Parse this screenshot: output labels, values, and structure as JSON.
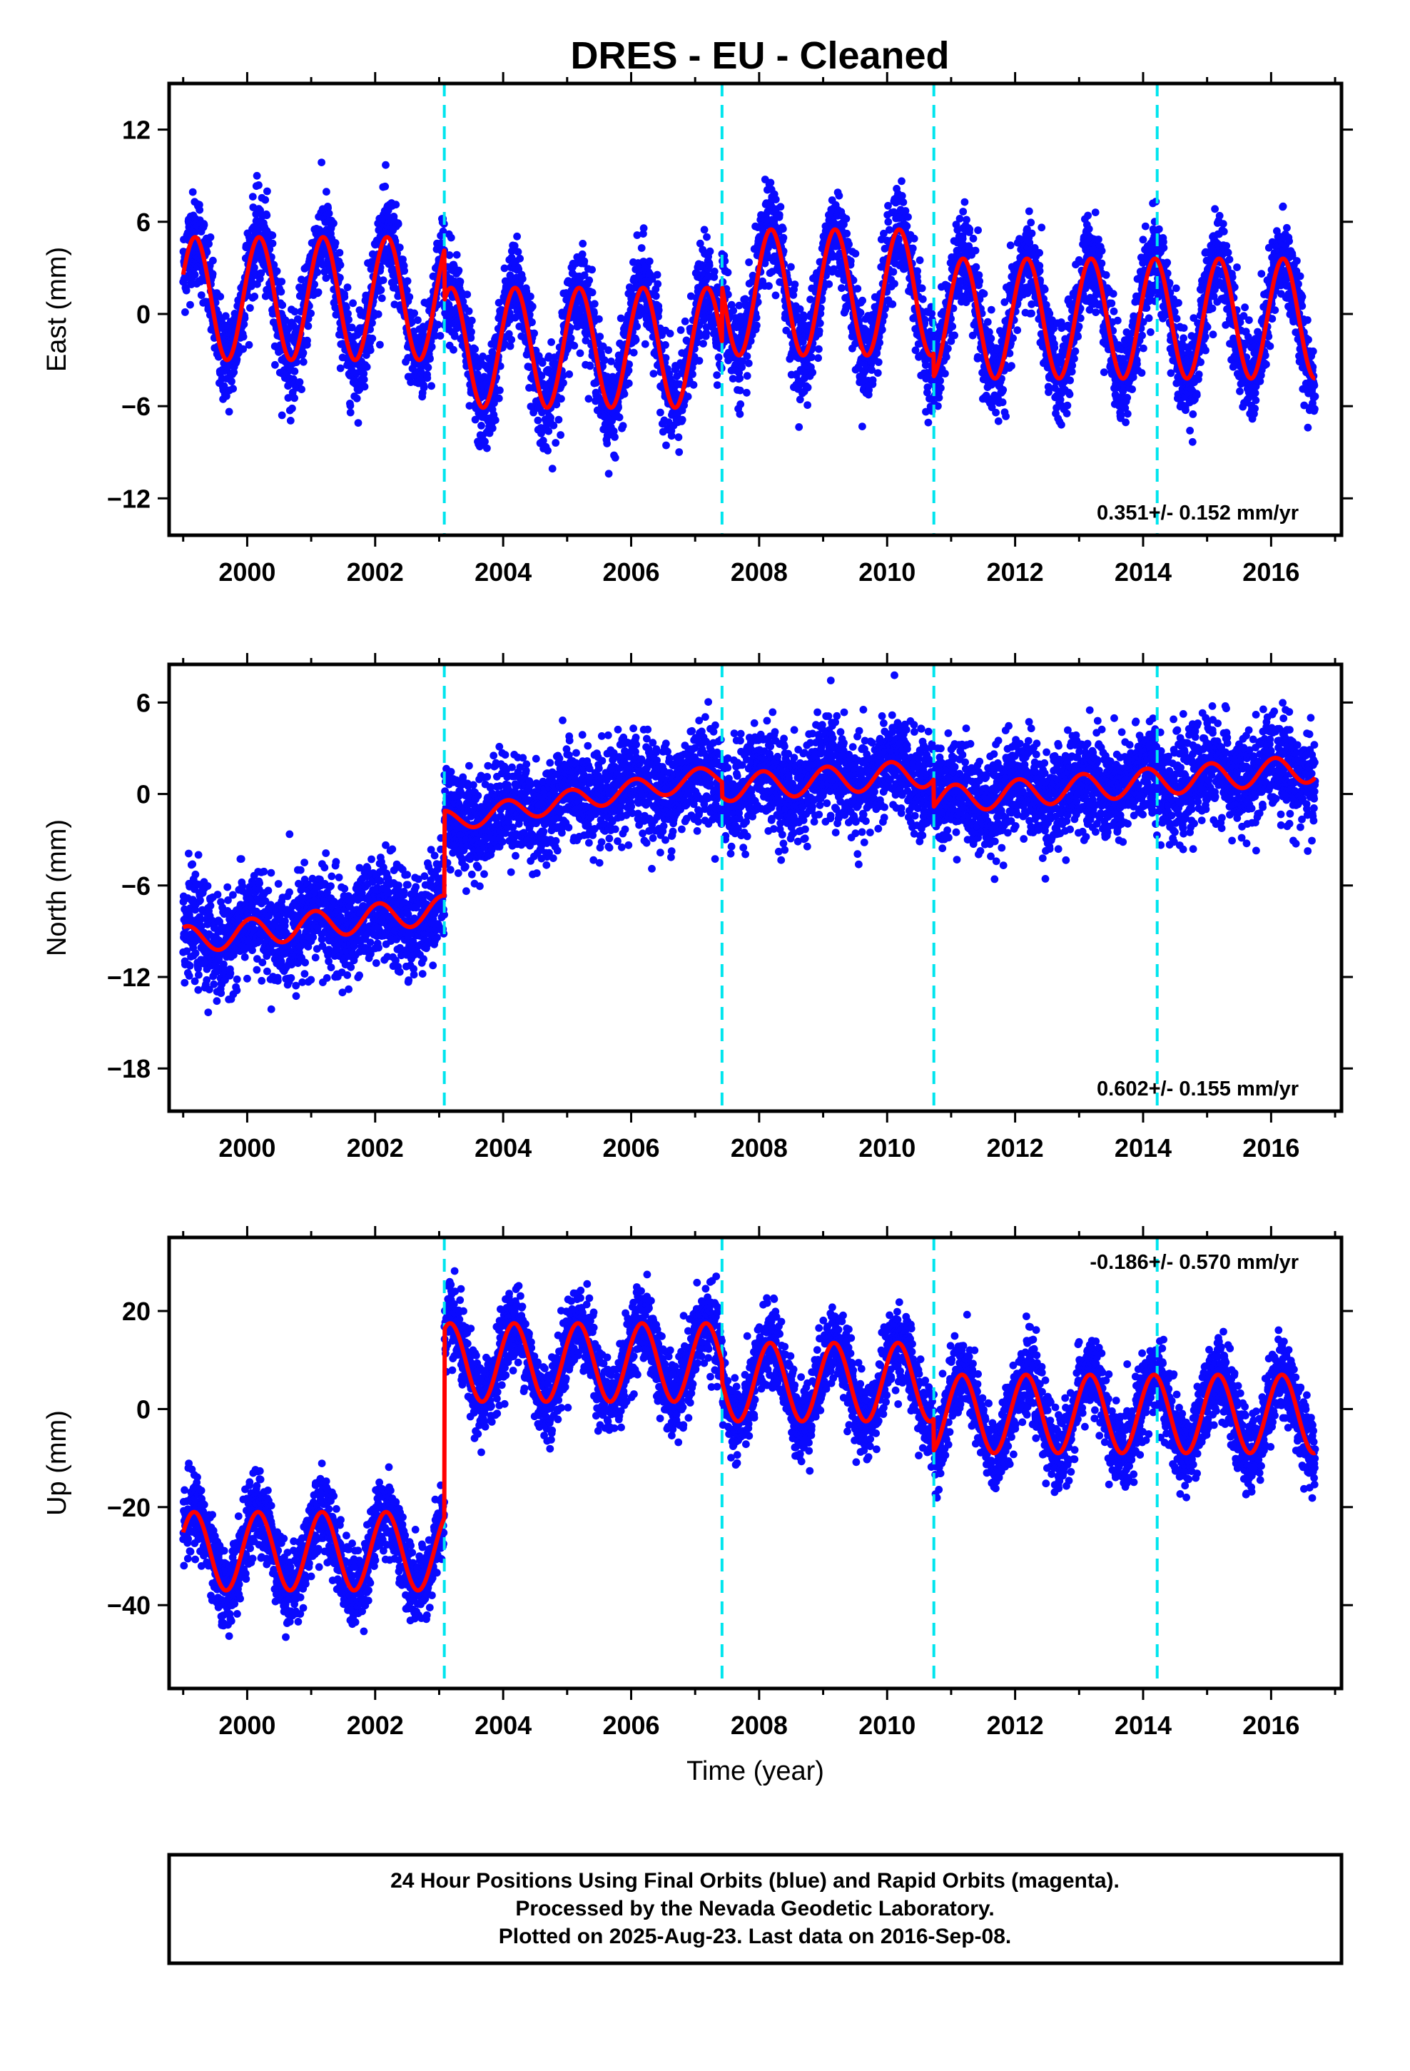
{
  "title": "DRES  - EU - Cleaned",
  "colors": {
    "data_points": "#0a0aff",
    "model_line": "#ff0000",
    "breaks": "#00e5ee",
    "frame": "#000000"
  },
  "chart_data": [
    {
      "type": "scatter",
      "name": "east",
      "xlabel": "",
      "ylabel": "East (mm)",
      "xlim": [
        1998.78,
        2017.1
      ],
      "ylim": [
        -14.4,
        15.0
      ],
      "yticks": [
        -12,
        -6,
        0,
        6,
        12
      ],
      "ytick_labels": [
        "−12",
        "−6",
        "0",
        "6",
        "12"
      ],
      "xticks": [
        2000,
        2002,
        2004,
        2006,
        2008,
        2010,
        2012,
        2014,
        2016
      ],
      "xtick_labels": [
        "2000",
        "2002",
        "2004",
        "2006",
        "2008",
        "2010",
        "2012",
        "2014",
        "2016"
      ],
      "rate": "0.351+/- 0.152 mm/yr",
      "rate_position": "bottom-right",
      "breaks": [
        2003.08,
        2007.42,
        2010.73,
        2014.22
      ],
      "segments": [
        {
          "start": 1999.0,
          "end": 2003.08,
          "offset": 1.0,
          "amplitude": 4.0,
          "slope": 0.0
        },
        {
          "start": 2003.08,
          "end": 2007.42,
          "offset": -2.2,
          "amplitude": 3.9,
          "slope": 0.0
        },
        {
          "start": 2007.42,
          "end": 2010.73,
          "offset": 1.4,
          "amplitude": 4.1,
          "slope": 0.0
        },
        {
          "start": 2010.73,
          "end": 2016.69,
          "offset": -0.3,
          "amplitude": 3.9,
          "slope": 0.0
        }
      ],
      "phase": 0.4,
      "noise": 1.5,
      "data_span": [
        1999.0,
        2016.69
      ],
      "points_per_year": 340
    },
    {
      "type": "scatter",
      "name": "north",
      "xlabel": "",
      "ylabel": "North (mm)",
      "xlim": [
        1998.78,
        2017.1
      ],
      "ylim": [
        -20.8,
        8.5
      ],
      "yticks": [
        -18,
        -12,
        -6,
        0,
        6
      ],
      "ytick_labels": [
        "−18",
        "−12",
        "−6",
        "0",
        "6"
      ],
      "xticks": [
        2000,
        2002,
        2004,
        2006,
        2008,
        2010,
        2012,
        2014,
        2016
      ],
      "xtick_labels": [
        "2000",
        "2002",
        "2004",
        "2006",
        "2008",
        "2010",
        "2012",
        "2014",
        "2016"
      ],
      "rate": "0.602+/- 0.155 mm/yr",
      "rate_position": "bottom-right",
      "breaks": [
        2003.08,
        2007.42,
        2010.73,
        2014.22
      ],
      "segments": [
        {
          "start": 1999.0,
          "end": 2003.08,
          "offset": -9.6,
          "amplitude": 0.9,
          "slope": 0.5
        },
        {
          "start": 2003.08,
          "end": 2007.42,
          "offset": -1.8,
          "amplitude": 0.7,
          "slope": 0.7
        },
        {
          "start": 2007.42,
          "end": 2010.73,
          "offset": 0.4,
          "amplitude": 0.9,
          "slope": 0.3
        },
        {
          "start": 2010.73,
          "end": 2016.69,
          "offset": -0.4,
          "amplitude": 0.9,
          "slope": 0.35
        }
      ],
      "phase": 1.2,
      "noise": 1.6,
      "data_span": [
        1999.0,
        2016.69
      ],
      "points_per_year": 340
    },
    {
      "type": "scatter",
      "name": "up",
      "xlabel": "Time (year)",
      "ylabel": "Up (mm)",
      "xlim": [
        1998.78,
        2017.1
      ],
      "ylim": [
        -57.0,
        35.0
      ],
      "yticks": [
        -40,
        -20,
        0,
        20
      ],
      "ytick_labels": [
        "−40",
        "−20",
        "0",
        "20"
      ],
      "xticks": [
        2000,
        2002,
        2004,
        2006,
        2008,
        2010,
        2012,
        2014,
        2016
      ],
      "xtick_labels": [
        "2000",
        "2002",
        "2004",
        "2006",
        "2008",
        "2010",
        "2012",
        "2014",
        "2016"
      ],
      "rate": "-0.186+/- 0.570 mm/yr",
      "rate_position": "top-right",
      "breaks": [
        2003.08,
        2007.42,
        2010.73,
        2014.22
      ],
      "segments": [
        {
          "start": 1999.0,
          "end": 2003.08,
          "offset": -29.0,
          "amplitude": 8.0,
          "slope": 0.0
        },
        {
          "start": 2003.08,
          "end": 2007.42,
          "offset": 9.5,
          "amplitude": 8.0,
          "slope": 0.0
        },
        {
          "start": 2007.42,
          "end": 2010.73,
          "offset": 5.5,
          "amplitude": 8.0,
          "slope": 0.0
        },
        {
          "start": 2010.73,
          "end": 2016.69,
          "offset": -1.0,
          "amplitude": 8.0,
          "slope": 0.0
        }
      ],
      "phase": 0.5,
      "noise": 4.0,
      "data_span": [
        1999.0,
        2016.69
      ],
      "points_per_year": 340
    }
  ],
  "footer": {
    "line1": "24 Hour Positions Using Final Orbits (blue) and Rapid Orbits (magenta).",
    "line2": "Processed by the Nevada Geodetic Laboratory.",
    "line3": "Plotted on 2025-Aug-23. Last data on 2016-Sep-08."
  }
}
